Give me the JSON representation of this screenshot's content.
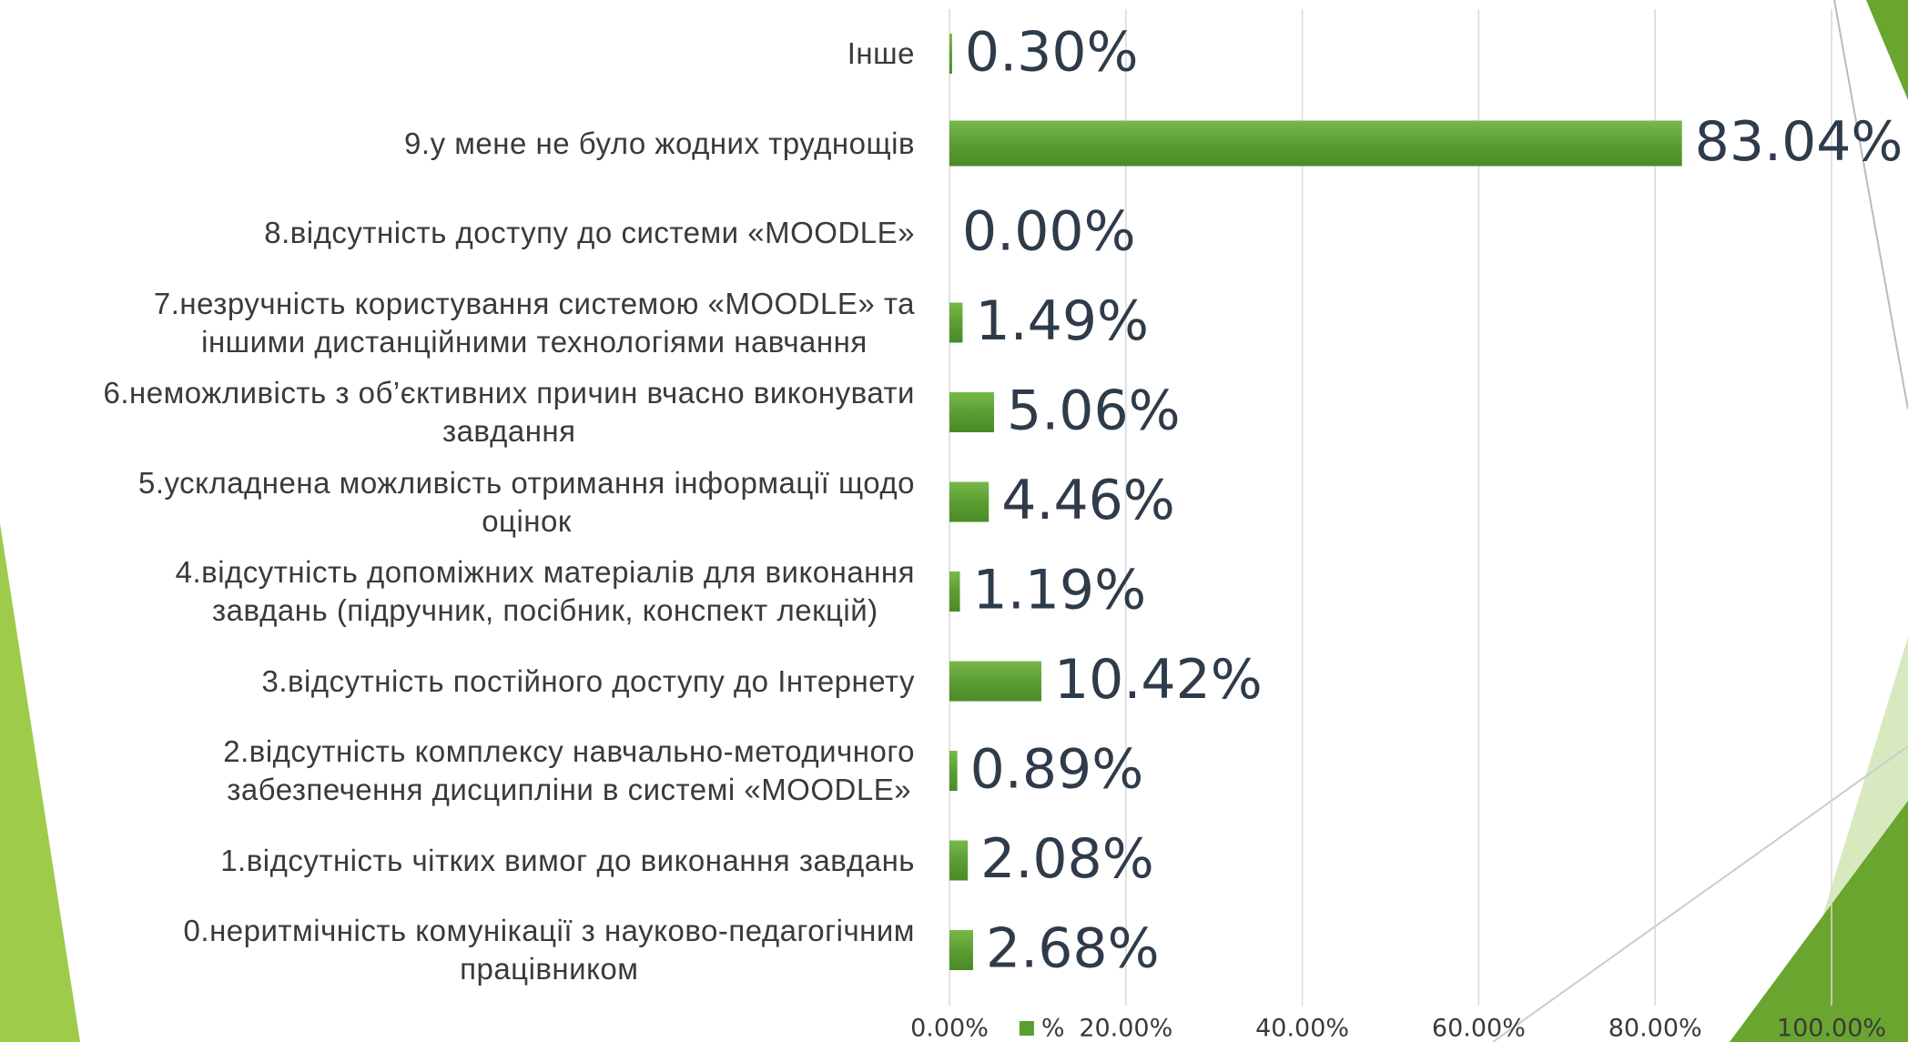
{
  "chart_data": {
    "type": "bar",
    "orientation": "horizontal",
    "categories": [
      "Інше",
      "9.у мене не було жодних труднощів",
      "8.відсутність доступу до системи «MOODLE»",
      "7.незручність користування системою «MOODLE» та\nіншими дистанційними технологіями навчання",
      "6.неможливість з об’єктивних причин вчасно виконувати\nзавдання",
      "5.ускладнена можливість отримання інформації щодо\nоцінок",
      "4.відсутність допоміжних матеріалів для виконання\nзавдань (підручник, посібник, конспект лекцій)",
      "3.відсутність постійного доступу до Інтернету",
      "2.відсутність комплексу навчально-методичного\nзабезпечення дисципліни в системі «MOODLE»",
      "1.відсутність чітких вимог до виконання завдань",
      "0.неритмічність комунікації з науково-педагогічним\nпрацівником"
    ],
    "series": [
      {
        "name": "%",
        "color": "#5b9e31",
        "values": [
          0.3,
          83.04,
          0,
          1.49,
          5.06,
          4.46,
          1.19,
          10.42,
          0.89,
          2.08,
          2.68
        ],
        "value_labels": [
          "0.30%",
          "83.04%",
          "0.00%",
          "1.49%",
          "5.06%",
          "4.46%",
          "1.19%",
          "10.42%",
          "0.89%",
          "2.08%",
          "2.68%"
        ]
      }
    ],
    "xlim": [
      0,
      100
    ],
    "xticks": [
      {
        "value": 0,
        "label": "0.00%"
      },
      {
        "value": 20,
        "label": "20.00%"
      },
      {
        "value": 40,
        "label": "40.00%"
      },
      {
        "value": 60,
        "label": "60.00%"
      },
      {
        "value": 80,
        "label": "80.00%"
      },
      {
        "value": 100,
        "label": "100.00%"
      }
    ],
    "grid": true,
    "legend": "bottom"
  }
}
